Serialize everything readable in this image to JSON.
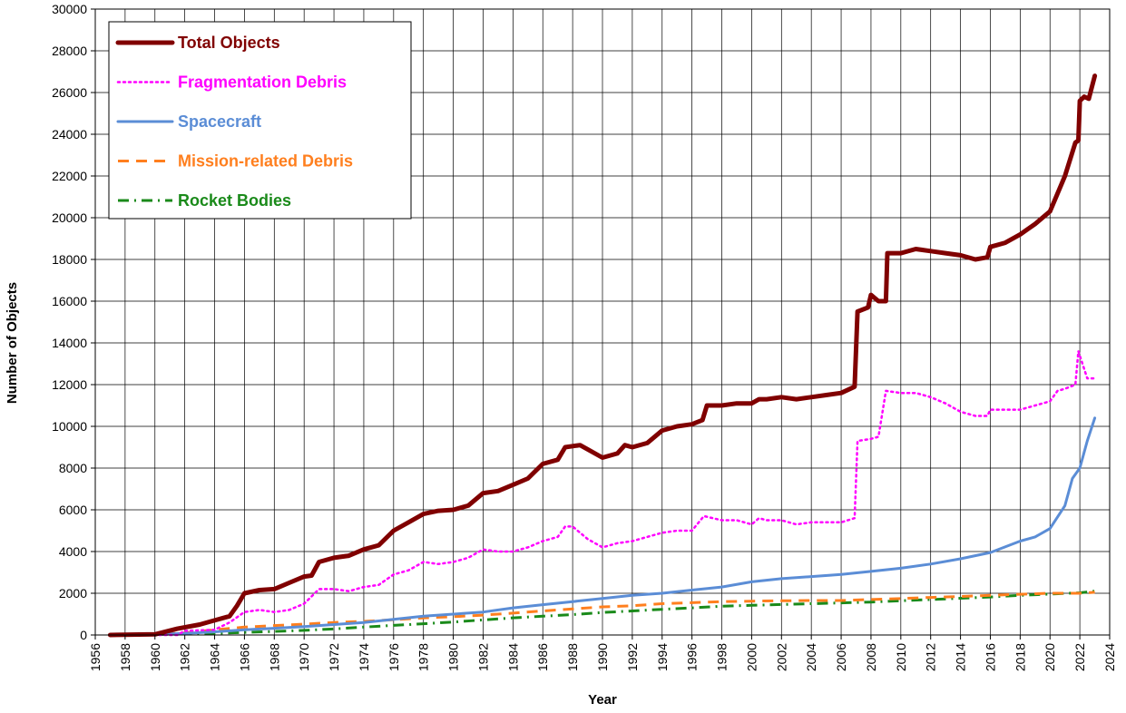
{
  "chart_data": {
    "type": "line",
    "xlabel": "Year",
    "ylabel": "Number of Objects",
    "xlim": [
      1956,
      2024
    ],
    "ylim": [
      0,
      30000
    ],
    "x_ticks": [
      1956,
      1958,
      1960,
      1962,
      1964,
      1966,
      1968,
      1970,
      1972,
      1974,
      1976,
      1978,
      1980,
      1982,
      1984,
      1986,
      1988,
      1990,
      1992,
      1994,
      1996,
      1998,
      2000,
      2002,
      2004,
      2006,
      2008,
      2010,
      2012,
      2014,
      2016,
      2018,
      2020,
      2022,
      2024
    ],
    "y_ticks": [
      0,
      2000,
      4000,
      6000,
      8000,
      10000,
      12000,
      14000,
      16000,
      18000,
      20000,
      22000,
      24000,
      26000,
      28000,
      30000
    ],
    "grid": true,
    "legend_position": "top-left",
    "series": [
      {
        "name": "Total Objects",
        "color": "#800000",
        "style": "solid-thick",
        "points": [
          [
            1957,
            0
          ],
          [
            1960,
            30
          ],
          [
            1961.5,
            300
          ],
          [
            1963,
            500
          ],
          [
            1964,
            700
          ],
          [
            1965,
            900
          ],
          [
            1965.5,
            1400
          ],
          [
            1966,
            2000
          ],
          [
            1967,
            2150
          ],
          [
            1968,
            2200
          ],
          [
            1969,
            2500
          ],
          [
            1970,
            2800
          ],
          [
            1970.5,
            2850
          ],
          [
            1971,
            3500
          ],
          [
            1972,
            3700
          ],
          [
            1973,
            3800
          ],
          [
            1974,
            4100
          ],
          [
            1975,
            4300
          ],
          [
            1976,
            5000
          ],
          [
            1977,
            5400
          ],
          [
            1978,
            5800
          ],
          [
            1979,
            5950
          ],
          [
            1980,
            6000
          ],
          [
            1981,
            6200
          ],
          [
            1982,
            6800
          ],
          [
            1983,
            6900
          ],
          [
            1984,
            7200
          ],
          [
            1985,
            7500
          ],
          [
            1986,
            8200
          ],
          [
            1987,
            8400
          ],
          [
            1987.5,
            9000
          ],
          [
            1988.5,
            9100
          ],
          [
            1989,
            8900
          ],
          [
            1990,
            8500
          ],
          [
            1991,
            8700
          ],
          [
            1991.5,
            9100
          ],
          [
            1992,
            9000
          ],
          [
            1993,
            9200
          ],
          [
            1994,
            9800
          ],
          [
            1995,
            10000
          ],
          [
            1996,
            10100
          ],
          [
            1996.7,
            10300
          ],
          [
            1997,
            11000
          ],
          [
            1998,
            11000
          ],
          [
            1999,
            11100
          ],
          [
            2000,
            11100
          ],
          [
            2000.5,
            11300
          ],
          [
            2001,
            11300
          ],
          [
            2002,
            11400
          ],
          [
            2003,
            11300
          ],
          [
            2004,
            11400
          ],
          [
            2005,
            11500
          ],
          [
            2006,
            11600
          ],
          [
            2006.9,
            11900
          ],
          [
            2007.1,
            15500
          ],
          [
            2007.8,
            15700
          ],
          [
            2008,
            16300
          ],
          [
            2008.5,
            16000
          ],
          [
            2009,
            16000
          ],
          [
            2009.1,
            18300
          ],
          [
            2010,
            18300
          ],
          [
            2011,
            18500
          ],
          [
            2012,
            18400
          ],
          [
            2013,
            18300
          ],
          [
            2014,
            18200
          ],
          [
            2015,
            18000
          ],
          [
            2015.8,
            18100
          ],
          [
            2016,
            18600
          ],
          [
            2017,
            18800
          ],
          [
            2018,
            19200
          ],
          [
            2019,
            19700
          ],
          [
            2020,
            20300
          ],
          [
            2021,
            22000
          ],
          [
            2021.7,
            23600
          ],
          [
            2021.9,
            23700
          ],
          [
            2022,
            25600
          ],
          [
            2022.3,
            25800
          ],
          [
            2022.6,
            25700
          ],
          [
            2023,
            26800
          ]
        ]
      },
      {
        "name": "Fragmentation Debris",
        "color": "#ff00ff",
        "style": "dotted",
        "points": [
          [
            1957,
            0
          ],
          [
            1961.5,
            0
          ],
          [
            1962,
            200
          ],
          [
            1964,
            250
          ],
          [
            1965,
            600
          ],
          [
            1966,
            1100
          ],
          [
            1967,
            1200
          ],
          [
            1968,
            1100
          ],
          [
            1969,
            1200
          ],
          [
            1970,
            1500
          ],
          [
            1971,
            2200
          ],
          [
            1972,
            2200
          ],
          [
            1973,
            2100
          ],
          [
            1974,
            2300
          ],
          [
            1975,
            2400
          ],
          [
            1976,
            2900
          ],
          [
            1977,
            3100
          ],
          [
            1978,
            3500
          ],
          [
            1979,
            3400
          ],
          [
            1980,
            3500
          ],
          [
            1981,
            3700
          ],
          [
            1982,
            4100
          ],
          [
            1983,
            4000
          ],
          [
            1984,
            4000
          ],
          [
            1985,
            4200
          ],
          [
            1986,
            4500
          ],
          [
            1987,
            4700
          ],
          [
            1987.5,
            5200
          ],
          [
            1988,
            5200
          ],
          [
            1989,
            4600
          ],
          [
            1990,
            4200
          ],
          [
            1991,
            4400
          ],
          [
            1992,
            4500
          ],
          [
            1993,
            4700
          ],
          [
            1994,
            4900
          ],
          [
            1995,
            5000
          ],
          [
            1996,
            5000
          ],
          [
            1996.8,
            5700
          ],
          [
            1998,
            5500
          ],
          [
            1999,
            5500
          ],
          [
            2000,
            5300
          ],
          [
            2000.5,
            5600
          ],
          [
            2001,
            5500
          ],
          [
            2002,
            5500
          ],
          [
            2003,
            5300
          ],
          [
            2004,
            5400
          ],
          [
            2005,
            5400
          ],
          [
            2006,
            5400
          ],
          [
            2006.9,
            5600
          ],
          [
            2007.1,
            9300
          ],
          [
            2008,
            9400
          ],
          [
            2008.5,
            9500
          ],
          [
            2009,
            11700
          ],
          [
            2010,
            11600
          ],
          [
            2011,
            11600
          ],
          [
            2012,
            11400
          ],
          [
            2013,
            11100
          ],
          [
            2014,
            10700
          ],
          [
            2015,
            10500
          ],
          [
            2015.8,
            10500
          ],
          [
            2016,
            10800
          ],
          [
            2017,
            10800
          ],
          [
            2018,
            10800
          ],
          [
            2019,
            11000
          ],
          [
            2020,
            11200
          ],
          [
            2020.5,
            11700
          ],
          [
            2021,
            11800
          ],
          [
            2021.7,
            12000
          ],
          [
            2021.9,
            13600
          ],
          [
            2022.5,
            12300
          ],
          [
            2023,
            12300
          ]
        ]
      },
      {
        "name": "Spacecraft",
        "color": "#5b8dd6",
        "style": "solid",
        "points": [
          [
            1957,
            0
          ],
          [
            1960,
            30
          ],
          [
            1962,
            80
          ],
          [
            1964,
            150
          ],
          [
            1966,
            250
          ],
          [
            1968,
            320
          ],
          [
            1970,
            400
          ],
          [
            1972,
            500
          ],
          [
            1974,
            600
          ],
          [
            1976,
            750
          ],
          [
            1978,
            900
          ],
          [
            1980,
            1000
          ],
          [
            1982,
            1100
          ],
          [
            1984,
            1300
          ],
          [
            1986,
            1450
          ],
          [
            1988,
            1600
          ],
          [
            1990,
            1750
          ],
          [
            1992,
            1900
          ],
          [
            1994,
            2000
          ],
          [
            1996,
            2150
          ],
          [
            1998,
            2300
          ],
          [
            2000,
            2550
          ],
          [
            2002,
            2700
          ],
          [
            2004,
            2800
          ],
          [
            2006,
            2900
          ],
          [
            2008,
            3050
          ],
          [
            2010,
            3200
          ],
          [
            2012,
            3400
          ],
          [
            2014,
            3650
          ],
          [
            2016,
            3950
          ],
          [
            2018,
            4500
          ],
          [
            2019,
            4700
          ],
          [
            2020,
            5100
          ],
          [
            2021,
            6200
          ],
          [
            2021.5,
            7500
          ],
          [
            2022,
            8000
          ],
          [
            2022.5,
            9300
          ],
          [
            2023,
            10400
          ]
        ]
      },
      {
        "name": "Mission-related Debris",
        "color": "#ff7f1e",
        "style": "dashed",
        "points": [
          [
            1957,
            0
          ],
          [
            1960,
            30
          ],
          [
            1962,
            100
          ],
          [
            1964,
            250
          ],
          [
            1966,
            380
          ],
          [
            1968,
            450
          ],
          [
            1970,
            520
          ],
          [
            1972,
            600
          ],
          [
            1974,
            650
          ],
          [
            1976,
            730
          ],
          [
            1978,
            820
          ],
          [
            1980,
            880
          ],
          [
            1982,
            950
          ],
          [
            1984,
            1050
          ],
          [
            1986,
            1150
          ],
          [
            1988,
            1250
          ],
          [
            1990,
            1350
          ],
          [
            1992,
            1400
          ],
          [
            1994,
            1500
          ],
          [
            1996,
            1550
          ],
          [
            1998,
            1600
          ],
          [
            2000,
            1620
          ],
          [
            2002,
            1640
          ],
          [
            2004,
            1650
          ],
          [
            2006,
            1650
          ],
          [
            2008,
            1700
          ],
          [
            2010,
            1750
          ],
          [
            2012,
            1800
          ],
          [
            2014,
            1850
          ],
          [
            2016,
            1900
          ],
          [
            2018,
            1950
          ],
          [
            2020,
            2000
          ],
          [
            2022,
            2000
          ],
          [
            2023,
            2050
          ]
        ]
      },
      {
        "name": "Rocket Bodies",
        "color": "#1a8a1a",
        "style": "dash-dot",
        "points": [
          [
            1957,
            0
          ],
          [
            1960,
            20
          ],
          [
            1962,
            50
          ],
          [
            1964,
            80
          ],
          [
            1966,
            120
          ],
          [
            1968,
            170
          ],
          [
            1970,
            220
          ],
          [
            1972,
            290
          ],
          [
            1974,
            380
          ],
          [
            1976,
            460
          ],
          [
            1978,
            540
          ],
          [
            1980,
            620
          ],
          [
            1982,
            720
          ],
          [
            1984,
            820
          ],
          [
            1986,
            900
          ],
          [
            1988,
            980
          ],
          [
            1990,
            1080
          ],
          [
            1992,
            1150
          ],
          [
            1994,
            1230
          ],
          [
            1996,
            1300
          ],
          [
            1998,
            1380
          ],
          [
            2000,
            1420
          ],
          [
            2002,
            1460
          ],
          [
            2004,
            1500
          ],
          [
            2006,
            1540
          ],
          [
            2008,
            1580
          ],
          [
            2010,
            1640
          ],
          [
            2012,
            1700
          ],
          [
            2014,
            1760
          ],
          [
            2016,
            1820
          ],
          [
            2018,
            1900
          ],
          [
            2020,
            1960
          ],
          [
            2022,
            2020
          ],
          [
            2023,
            2100
          ]
        ]
      }
    ]
  }
}
